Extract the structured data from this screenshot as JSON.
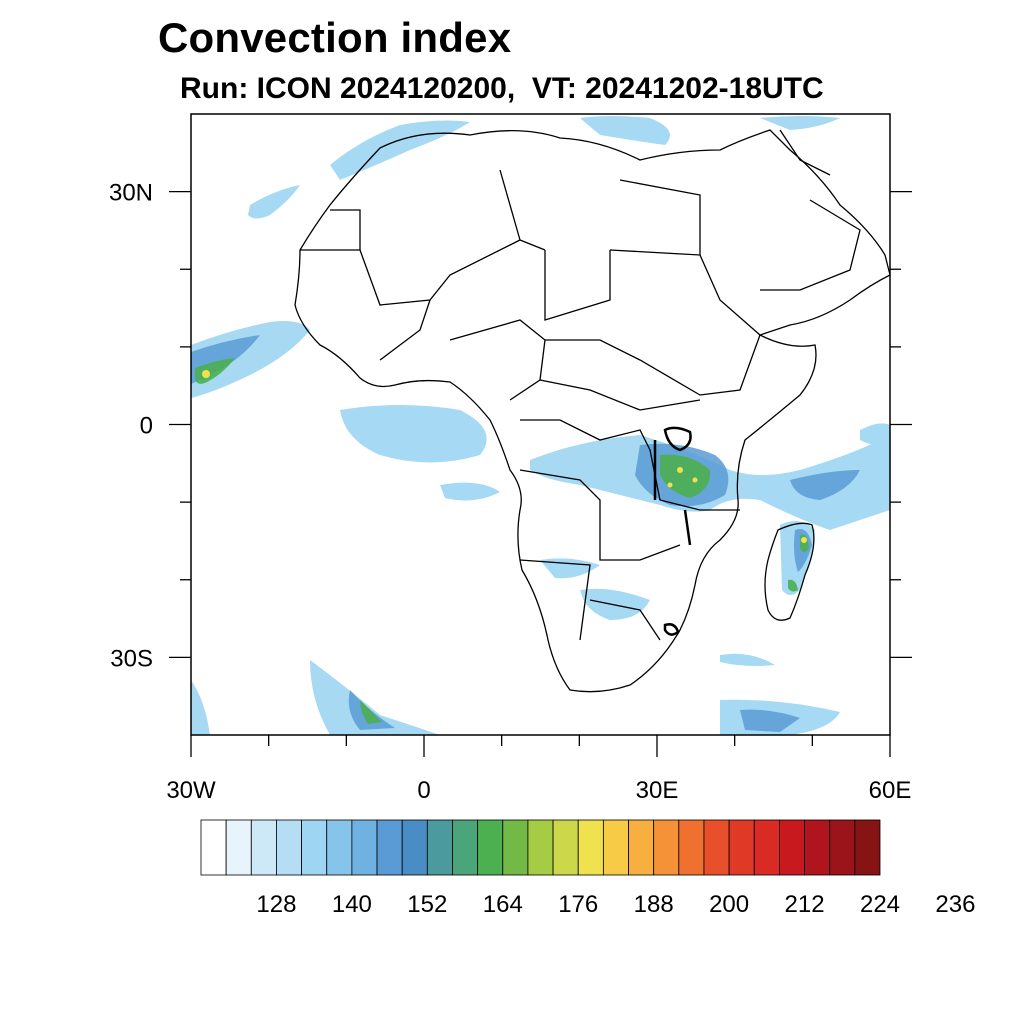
{
  "title": "Convection index",
  "subtitle": "Run: ICON 2024120200,  VT: 20241202-18UTC",
  "map": {
    "lon_range": [
      -30,
      60
    ],
    "lat_range": [
      -40,
      40
    ],
    "lon_ticks": [
      {
        "value": -30,
        "label": "30W"
      },
      {
        "value": 0,
        "label": "0"
      },
      {
        "value": 30,
        "label": "30E"
      },
      {
        "value": 60,
        "label": "60E"
      }
    ],
    "lat_ticks": [
      {
        "value": 30,
        "label": "30N"
      },
      {
        "value": 0,
        "label": "0"
      },
      {
        "value": -30,
        "label": "30S"
      }
    ],
    "minor_lon_ticks": [
      -20,
      -10,
      10,
      20,
      40,
      50
    ],
    "minor_lat_ticks": [
      20,
      10,
      -10,
      -20
    ]
  },
  "colorbar": {
    "colors": [
      "#ffffff",
      "#e8f4fb",
      "#cde9f7",
      "#b5def5",
      "#9dd5f2",
      "#86c4ea",
      "#6fb2e2",
      "#5a9bd5",
      "#4a8cc4",
      "#4a9a9e",
      "#4ba57a",
      "#4caf50",
      "#72b945",
      "#a6cc45",
      "#ccd84a",
      "#f0e24f",
      "#f8cb47",
      "#f7b040",
      "#f59238",
      "#f07030",
      "#e8502b",
      "#e03a27",
      "#d92a24",
      "#c8191f",
      "#b0141c",
      "#9a1419",
      "#861414"
    ],
    "labels": [
      "128",
      "140",
      "152",
      "164",
      "176",
      "188",
      "200",
      "212",
      "224",
      "236"
    ]
  }
}
